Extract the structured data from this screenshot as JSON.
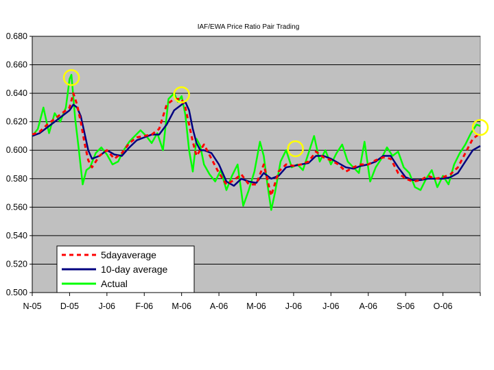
{
  "chart_data": {
    "type": "line",
    "title": "IAF/EWA Price Ratio Pair Trading",
    "xlabel": "",
    "ylabel": "",
    "ylim": [
      0.5,
      0.68
    ],
    "y_ticks": [
      "0.500",
      "0.520",
      "0.540",
      "0.560",
      "0.580",
      "0.600",
      "0.620",
      "0.640",
      "0.660",
      "0.680"
    ],
    "x_tick_labels": [
      "N-05",
      "D-05",
      "J-06",
      "F-06",
      "M-06",
      "A-06",
      "M-06",
      "J-06",
      "J-06",
      "A-06",
      "S-06",
      "O-06"
    ],
    "x_range_months": [
      0,
      12
    ],
    "grid": true,
    "legend_position": "bottom-left",
    "colors": {
      "plot_bg": "#c0c0c0",
      "five_day": "#ff0000",
      "ten_day": "#000080",
      "actual": "#00ff00",
      "circle": "#ffff00"
    },
    "series": [
      {
        "name": "5dayaverage",
        "style": "dashed",
        "x": [
          0,
          0.2,
          0.4,
          0.6,
          0.8,
          1.0,
          1.1,
          1.2,
          1.3,
          1.4,
          1.5,
          1.6,
          1.8,
          2.0,
          2.2,
          2.4,
          2.6,
          2.8,
          3.0,
          3.2,
          3.4,
          3.6,
          3.8,
          4.0,
          4.1,
          4.2,
          4.3,
          4.4,
          4.5,
          4.6,
          4.8,
          5.0,
          5.2,
          5.4,
          5.6,
          5.8,
          6.0,
          6.2,
          6.4,
          6.6,
          6.8,
          7.0,
          7.2,
          7.4,
          7.6,
          7.8,
          8.0,
          8.2,
          8.4,
          8.6,
          8.8,
          9.0,
          9.2,
          9.4,
          9.6,
          9.8,
          10.0,
          10.2,
          10.4,
          10.6,
          10.8,
          11.0,
          11.2,
          11.4,
          11.6,
          11.8,
          12.0
        ],
        "values": [
          0.611,
          0.613,
          0.618,
          0.622,
          0.626,
          0.63,
          0.64,
          0.632,
          0.62,
          0.605,
          0.593,
          0.588,
          0.596,
          0.6,
          0.594,
          0.598,
          0.605,
          0.609,
          0.61,
          0.611,
          0.615,
          0.632,
          0.636,
          0.636,
          0.63,
          0.618,
          0.606,
          0.596,
          0.6,
          0.604,
          0.594,
          0.584,
          0.576,
          0.579,
          0.583,
          0.576,
          0.576,
          0.59,
          0.568,
          0.585,
          0.59,
          0.589,
          0.59,
          0.592,
          0.599,
          0.595,
          0.593,
          0.59,
          0.585,
          0.588,
          0.59,
          0.59,
          0.593,
          0.595,
          0.594,
          0.584,
          0.58,
          0.578,
          0.579,
          0.582,
          0.58,
          0.581,
          0.583,
          0.588,
          0.598,
          0.608,
          0.612
        ]
      },
      {
        "name": "10-day average",
        "style": "solid",
        "x": [
          0,
          0.2,
          0.4,
          0.6,
          0.8,
          1.0,
          1.1,
          1.2,
          1.3,
          1.4,
          1.5,
          1.6,
          1.8,
          2.0,
          2.2,
          2.4,
          2.6,
          2.8,
          3.0,
          3.2,
          3.4,
          3.6,
          3.8,
          4.0,
          4.1,
          4.2,
          4.3,
          4.4,
          4.5,
          4.6,
          4.8,
          5.0,
          5.2,
          5.4,
          5.6,
          5.8,
          6.0,
          6.2,
          6.4,
          6.6,
          6.8,
          7.0,
          7.2,
          7.4,
          7.6,
          7.8,
          8.0,
          8.2,
          8.4,
          8.6,
          8.8,
          9.0,
          9.2,
          9.4,
          9.6,
          9.8,
          10.0,
          10.2,
          10.4,
          10.6,
          10.8,
          11.0,
          11.2,
          11.4,
          11.6,
          11.8,
          12.0
        ],
        "values": [
          0.61,
          0.612,
          0.616,
          0.62,
          0.624,
          0.628,
          0.632,
          0.63,
          0.624,
          0.612,
          0.6,
          0.594,
          0.596,
          0.6,
          0.597,
          0.596,
          0.602,
          0.607,
          0.609,
          0.611,
          0.611,
          0.618,
          0.628,
          0.632,
          0.634,
          0.628,
          0.615,
          0.605,
          0.6,
          0.6,
          0.598,
          0.59,
          0.578,
          0.575,
          0.58,
          0.578,
          0.577,
          0.584,
          0.58,
          0.582,
          0.588,
          0.589,
          0.59,
          0.591,
          0.596,
          0.596,
          0.594,
          0.591,
          0.588,
          0.587,
          0.589,
          0.59,
          0.592,
          0.596,
          0.596,
          0.588,
          0.581,
          0.579,
          0.579,
          0.58,
          0.58,
          0.58,
          0.581,
          0.584,
          0.592,
          0.6,
          0.603
        ]
      },
      {
        "name": "Actual",
        "style": "solid",
        "x": [
          0,
          0.15,
          0.3,
          0.45,
          0.6,
          0.75,
          0.9,
          1.0,
          1.05,
          1.15,
          1.25,
          1.35,
          1.45,
          1.55,
          1.7,
          1.85,
          2.0,
          2.15,
          2.3,
          2.45,
          2.6,
          2.75,
          2.9,
          3.05,
          3.2,
          3.35,
          3.5,
          3.65,
          3.8,
          3.9,
          4.0,
          4.1,
          4.2,
          4.3,
          4.4,
          4.5,
          4.6,
          4.75,
          4.9,
          5.05,
          5.2,
          5.35,
          5.5,
          5.65,
          5.8,
          5.95,
          6.1,
          6.2,
          6.3,
          6.4,
          6.5,
          6.65,
          6.8,
          6.95,
          7.1,
          7.25,
          7.4,
          7.55,
          7.7,
          7.85,
          8.0,
          8.15,
          8.3,
          8.45,
          8.6,
          8.75,
          8.9,
          9.05,
          9.2,
          9.35,
          9.5,
          9.65,
          9.8,
          9.95,
          10.1,
          10.25,
          10.4,
          10.55,
          10.7,
          10.85,
          11.0,
          11.15,
          11.3,
          11.45,
          11.6,
          11.75,
          11.9,
          12.0
        ],
        "values": [
          0.61,
          0.615,
          0.63,
          0.612,
          0.626,
          0.62,
          0.63,
          0.65,
          0.653,
          0.622,
          0.6,
          0.576,
          0.586,
          0.588,
          0.598,
          0.602,
          0.597,
          0.59,
          0.592,
          0.6,
          0.606,
          0.61,
          0.614,
          0.61,
          0.605,
          0.612,
          0.6,
          0.636,
          0.64,
          0.634,
          0.638,
          0.625,
          0.6,
          0.585,
          0.608,
          0.603,
          0.59,
          0.583,
          0.578,
          0.586,
          0.572,
          0.582,
          0.59,
          0.561,
          0.572,
          0.585,
          0.606,
          0.596,
          0.576,
          0.558,
          0.57,
          0.592,
          0.6,
          0.588,
          0.59,
          0.586,
          0.598,
          0.61,
          0.592,
          0.6,
          0.59,
          0.598,
          0.604,
          0.592,
          0.588,
          0.584,
          0.606,
          0.578,
          0.588,
          0.594,
          0.602,
          0.596,
          0.599,
          0.588,
          0.584,
          0.574,
          0.572,
          0.58,
          0.586,
          0.574,
          0.582,
          0.576,
          0.59,
          0.598,
          0.604,
          0.612,
          0.618,
          0.617
        ]
      }
    ],
    "circles": [
      {
        "x": 1.05,
        "y": 0.651
      },
      {
        "x": 4.0,
        "y": 0.639
      },
      {
        "x": 7.05,
        "y": 0.601
      },
      {
        "x": 12.0,
        "y": 0.616
      }
    ]
  }
}
